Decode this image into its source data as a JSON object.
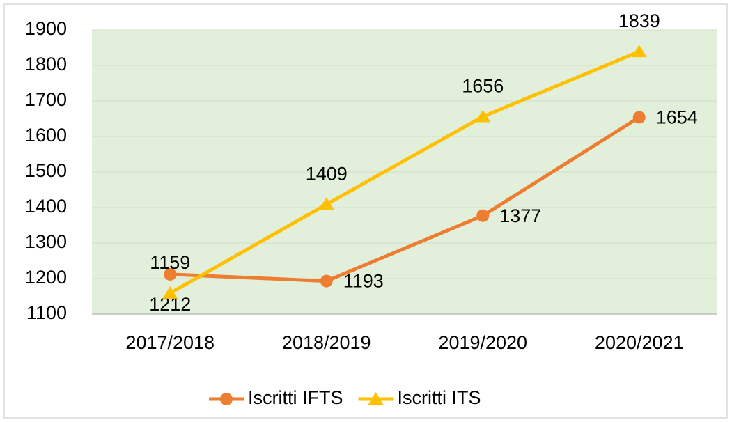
{
  "chart_data": {
    "type": "line",
    "categories": [
      "2017/2018",
      "2018/2019",
      "2019/2020",
      "2020/2021"
    ],
    "series": [
      {
        "name": "Iscritti IFTS",
        "color": "#ed7d31",
        "marker": "circle",
        "values": [
          1212,
          1193,
          1377,
          1654
        ]
      },
      {
        "name": "Iscritti ITS",
        "color": "#ffc000",
        "marker": "triangle",
        "values": [
          1159,
          1409,
          1656,
          1839
        ]
      }
    ],
    "ylim": [
      1100,
      1900
    ],
    "yticks": [
      1100,
      1200,
      1300,
      1400,
      1500,
      1600,
      1700,
      1800,
      1900
    ],
    "grid": true,
    "legend": "bottom",
    "plot_background": "#e2efda"
  }
}
